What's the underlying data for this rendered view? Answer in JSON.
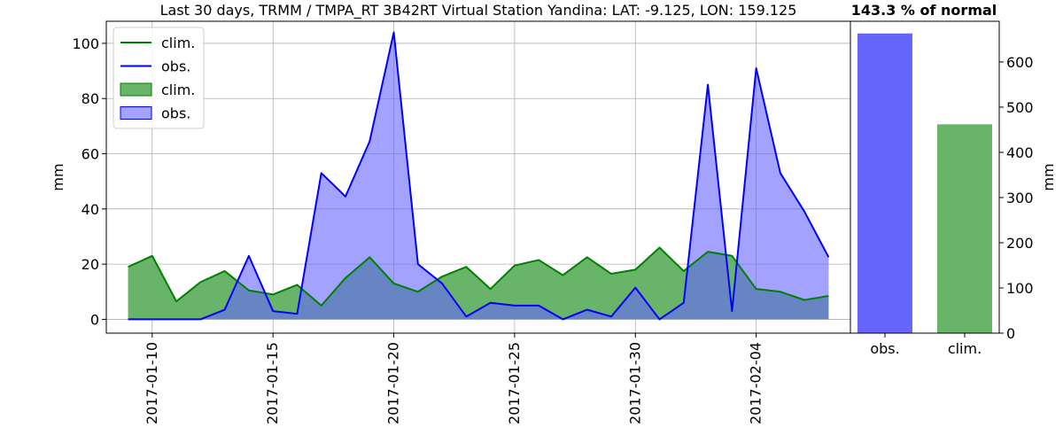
{
  "chart_data": [
    {
      "type": "area",
      "title": "Last 30 days, TRMM / TMPA_RT 3B42RT Virtual Station Yandina: LAT: -9.125, LON: 159.125",
      "xlabel": "",
      "ylabel": "mm",
      "x": [
        "2017-01-09",
        "2017-01-10",
        "2017-01-11",
        "2017-01-12",
        "2017-01-13",
        "2017-01-14",
        "2017-01-15",
        "2017-01-16",
        "2017-01-17",
        "2017-01-18",
        "2017-01-19",
        "2017-01-20",
        "2017-01-21",
        "2017-01-22",
        "2017-01-23",
        "2017-01-24",
        "2017-01-25",
        "2017-01-26",
        "2017-01-27",
        "2017-01-28",
        "2017-01-29",
        "2017-01-30",
        "2017-01-31",
        "2017-02-01",
        "2017-02-02",
        "2017-02-03",
        "2017-02-04",
        "2017-02-05",
        "2017-02-06",
        "2017-02-07"
      ],
      "x_ticks": [
        "2017-01-10",
        "2017-01-15",
        "2017-01-20",
        "2017-01-25",
        "2017-01-30",
        "2017-02-04"
      ],
      "ylim": [
        -5,
        108
      ],
      "y_ticks": [
        0,
        20,
        40,
        60,
        80,
        100
      ],
      "grid": true,
      "legend_position": "top-left",
      "legend": [
        "clim.",
        "obs.",
        "clim.",
        "obs."
      ],
      "series": [
        {
          "name": "clim.",
          "color": "#008000",
          "fill": "#68b468",
          "values": [
            19,
            23,
            6.5,
            13.5,
            17.5,
            10.5,
            9,
            12.5,
            5,
            15,
            22.5,
            13,
            10,
            15.5,
            19,
            11,
            19.5,
            21.5,
            16,
            22.5,
            16.5,
            18,
            26,
            17.5,
            24.5,
            23,
            11,
            10,
            7,
            8.5
          ]
        },
        {
          "name": "obs.",
          "color": "#0000ff",
          "fill": "#6666ff",
          "values": [
            0,
            0,
            0,
            0,
            3.5,
            23,
            3,
            2,
            53,
            44.5,
            64.5,
            104,
            20,
            13,
            1,
            6,
            5,
            5,
            0,
            3.5,
            1,
            11.5,
            0,
            6,
            85,
            3,
            91,
            53,
            39,
            22.5
          ]
        }
      ]
    },
    {
      "type": "bar",
      "title": "143.3 % of normal",
      "categories": [
        "obs.",
        "clim."
      ],
      "values": [
        663,
        462
      ],
      "colors": [
        "#6666ff",
        "#68b468"
      ],
      "ylabel": "mm",
      "ylim": [
        0,
        690
      ],
      "y_ticks": [
        0,
        100,
        200,
        300,
        400,
        500,
        600
      ]
    }
  ]
}
